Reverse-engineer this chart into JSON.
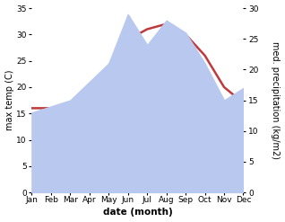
{
  "months": [
    "Jan",
    "Feb",
    "Mar",
    "Apr",
    "May",
    "Jun",
    "Jul",
    "Aug",
    "Sep",
    "Oct",
    "Nov",
    "Dec"
  ],
  "temp_max": [
    16,
    16,
    17,
    20,
    24,
    29,
    31,
    32,
    30,
    26,
    20,
    17
  ],
  "precipitation": [
    13,
    14,
    15,
    18,
    21,
    29,
    24,
    28,
    26,
    21,
    15,
    17
  ],
  "temp_color": "#c0393b",
  "precip_color": "#b8c8ee",
  "bg_color": "#ffffff",
  "xlabel": "date (month)",
  "ylabel_left": "max temp (C)",
  "ylabel_right": "med. precipitation (kg/m2)",
  "ylim_left": [
    0,
    35
  ],
  "ylim_right": [
    0,
    30
  ],
  "yticks_left": [
    0,
    5,
    10,
    15,
    20,
    25,
    30,
    35
  ],
  "yticks_right": [
    0,
    5,
    10,
    15,
    20,
    25,
    30
  ],
  "line_width": 1.8,
  "ylabel_fontsize": 7,
  "tick_fontsize": 6.5,
  "xlabel_fontsize": 7.5
}
